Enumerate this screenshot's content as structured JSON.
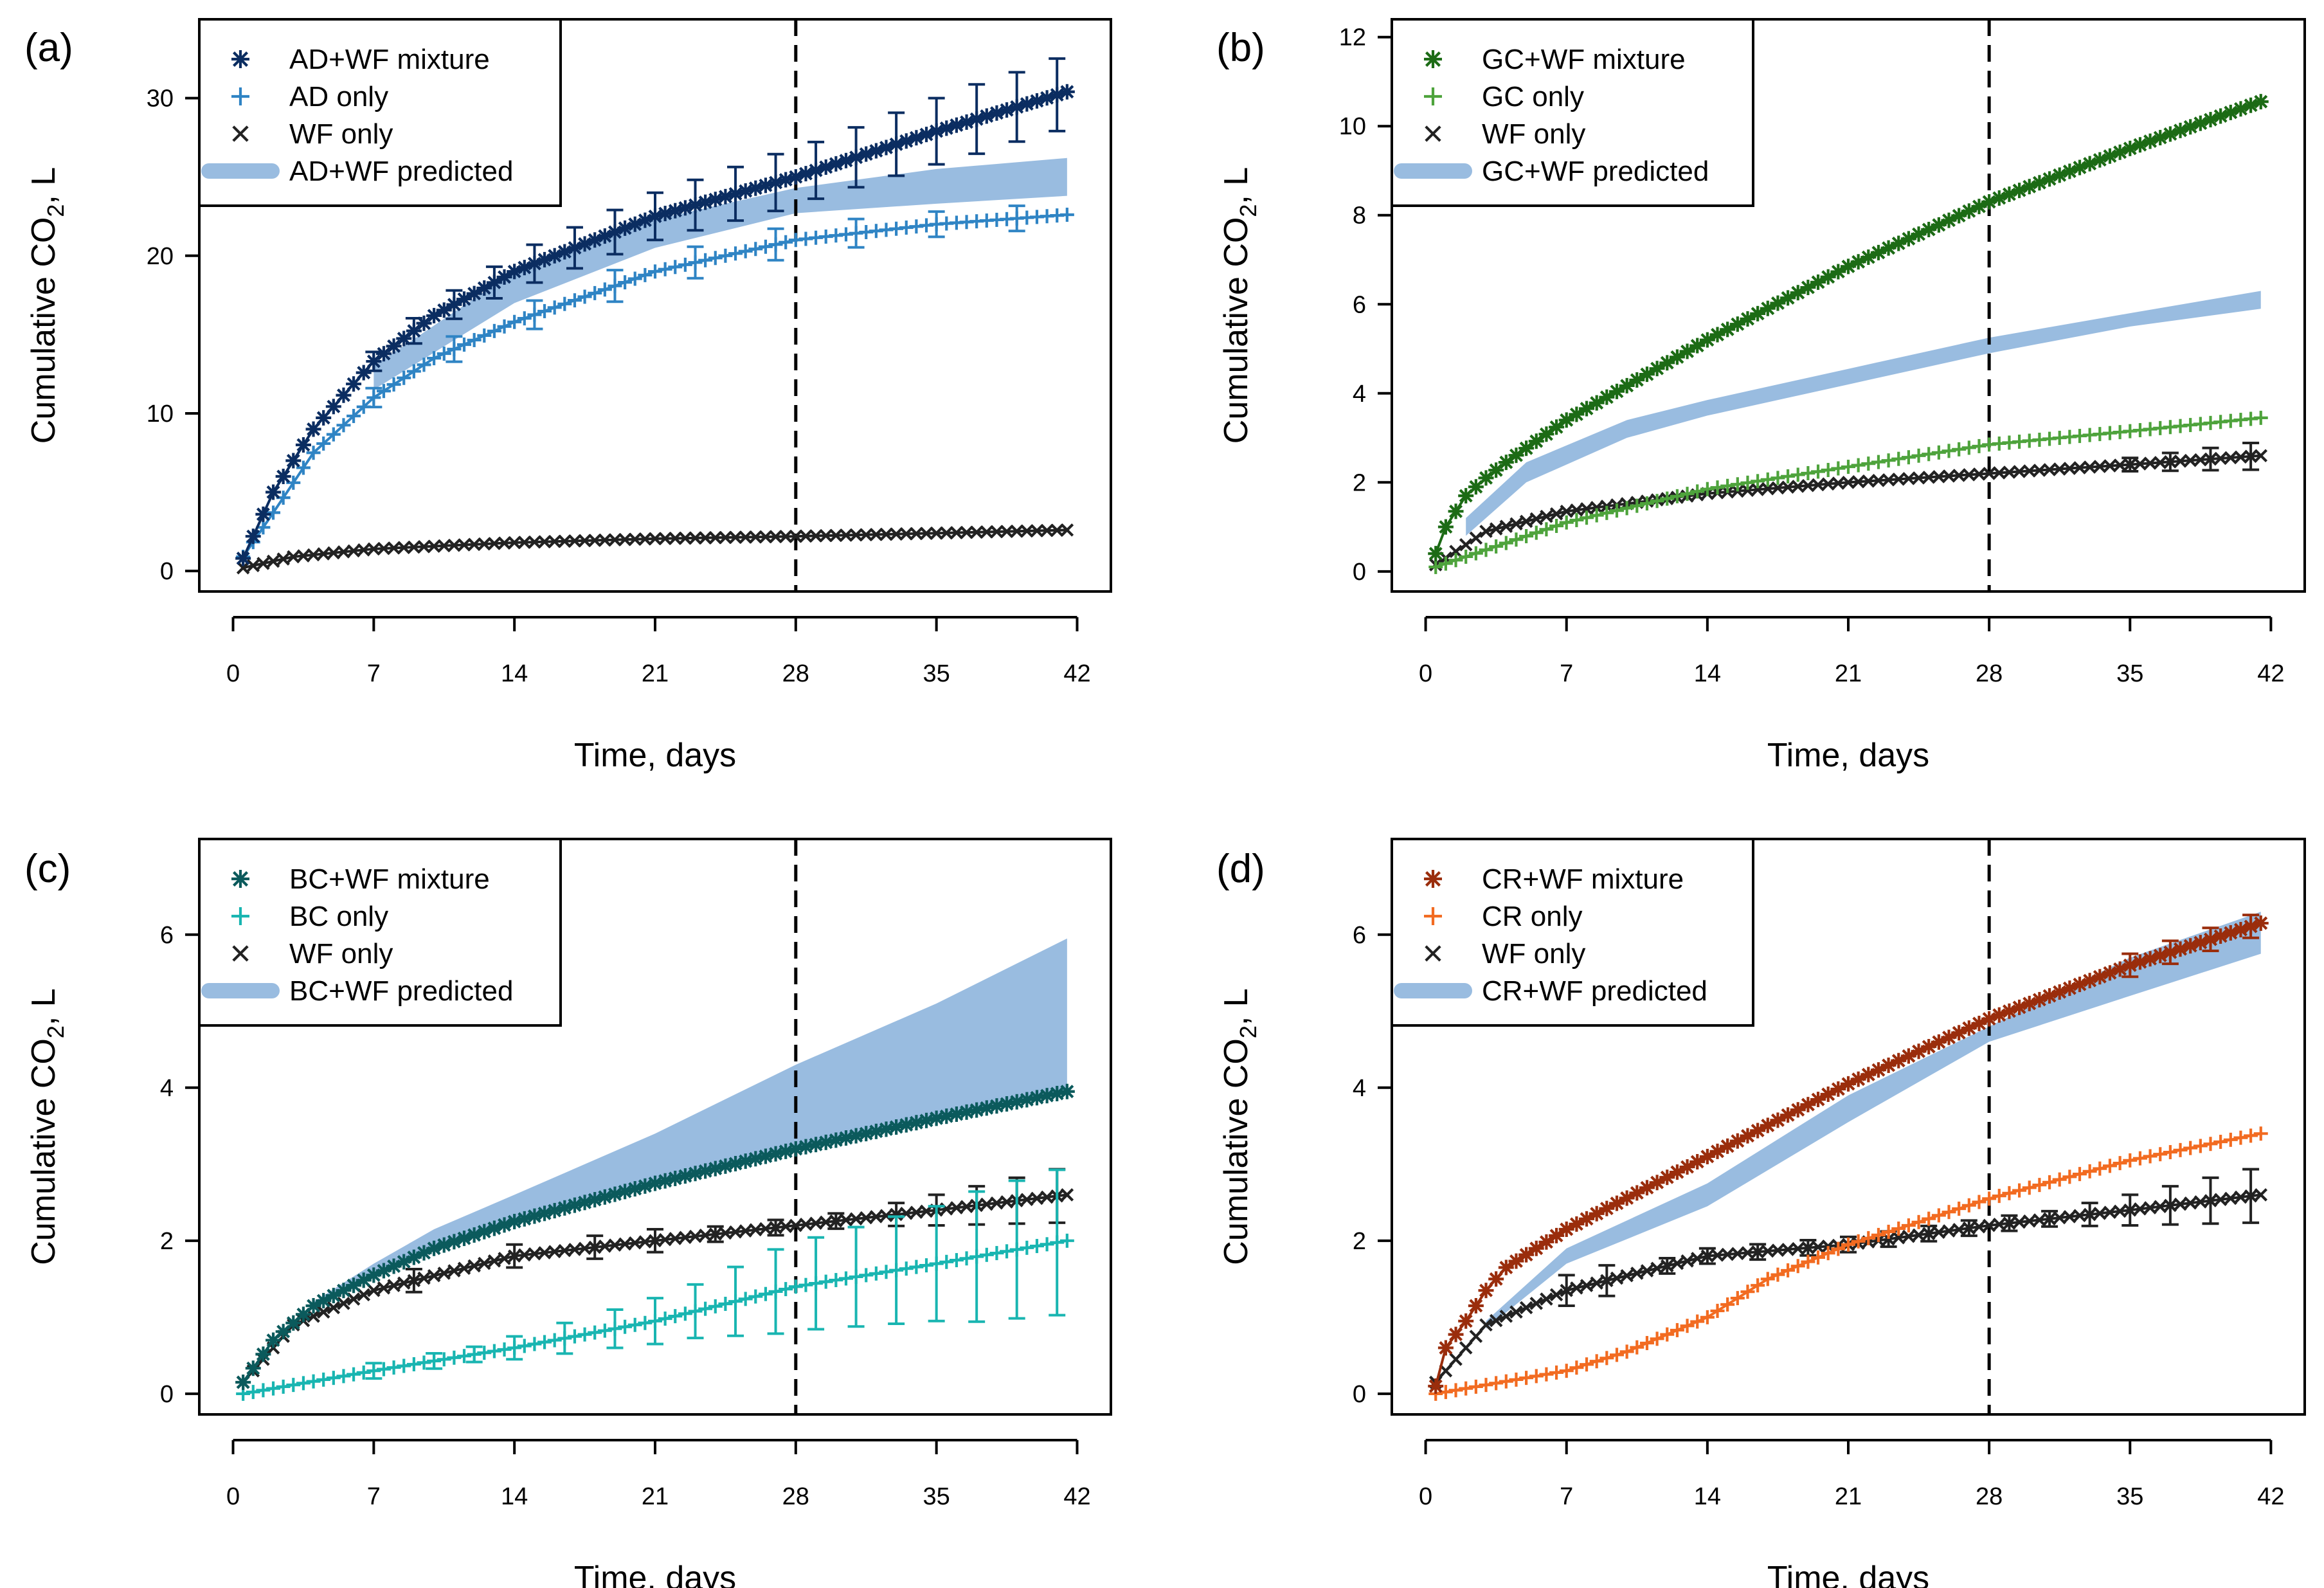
{
  "figure": {
    "shared": {
      "xlabel": "Time, days",
      "ylabel_prefix": "Cumulative CO",
      "ylabel_sub": "2",
      "ylabel_suffix": ", L",
      "x_ticks": [
        0,
        7,
        14,
        21,
        28,
        35,
        42
      ],
      "xlim": [
        -1.68,
        43.68
      ],
      "vline_x": 28
    }
  },
  "chart_data": [
    {
      "type": "line",
      "panel_label": "(a)",
      "ylim": [
        -1.3,
        35.0
      ],
      "y_ticks": [
        0,
        10,
        20,
        30
      ],
      "x_range": [
        0.5,
        41.5
      ],
      "colors": {
        "mix": "#0b2d61",
        "single": "#2f84c4",
        "wf": "#222222",
        "band": "#99bce0"
      },
      "legend": [
        "AD+WF mixture",
        "AD only",
        "WF only",
        "AD+WF predicted"
      ],
      "series": [
        {
          "name": "AD+WF mixture",
          "role": "mix",
          "marker": "asterisk",
          "x": [
            0.5,
            2,
            4,
            7,
            10,
            14,
            21,
            28,
            35,
            41.5
          ],
          "y": [
            0.8,
            5,
            9,
            13.3,
            16.2,
            19,
            22.5,
            25,
            27.9,
            30.4
          ],
          "errx": [
            7,
            9,
            11,
            13,
            15,
            17,
            19,
            21,
            23,
            25,
            27,
            29,
            31,
            33,
            35,
            37,
            39,
            41
          ],
          "erry": [
            0.6,
            0.8,
            0.9,
            1.0,
            1.2,
            1.3,
            1.4,
            1.5,
            1.6,
            1.7,
            1.8,
            1.8,
            1.9,
            2.0,
            2.1,
            2.2,
            2.2,
            2.3
          ]
        },
        {
          "name": "AD only",
          "role": "single",
          "marker": "plus",
          "x": [
            0.5,
            2,
            4,
            7,
            10,
            14,
            21,
            28,
            35,
            41.5
          ],
          "y": [
            0.9,
            3.7,
            7.5,
            11,
            13.5,
            15.8,
            19,
            21,
            22,
            22.6
          ],
          "errx": [
            7,
            11,
            15,
            19,
            23,
            27,
            31,
            35,
            39
          ],
          "erry": [
            0.6,
            0.8,
            0.9,
            1.0,
            1.0,
            1.0,
            0.9,
            0.8,
            0.8
          ]
        },
        {
          "name": "WF only",
          "role": "wf",
          "marker": "x",
          "x": [
            0.5,
            3,
            7,
            14,
            21,
            28,
            35,
            41.5
          ],
          "y": [
            0.2,
            0.9,
            1.4,
            1.8,
            2.05,
            2.2,
            2.4,
            2.6
          ],
          "errx": [],
          "erry": []
        }
      ],
      "band": {
        "name": "AD+WF predicted",
        "x": [
          7,
          14,
          21,
          28,
          35,
          41.5
        ],
        "lo": [
          11.5,
          17,
          20.5,
          22.7,
          23.3,
          23.8
        ],
        "hi": [
          13,
          19,
          22.3,
          24.3,
          25.5,
          26.2
        ]
      }
    },
    {
      "type": "line",
      "panel_label": "(b)",
      "ylim": [
        -0.45,
        12.4
      ],
      "y_ticks": [
        0,
        2,
        4,
        6,
        8,
        10,
        12
      ],
      "x_range": [
        0.5,
        41.5
      ],
      "colors": {
        "mix": "#1c6b15",
        "single": "#4ea33c",
        "wf": "#222222",
        "band": "#99bce0"
      },
      "legend": [
        "GC+WF mixture",
        "GC only",
        "WF only",
        "GC+WF predicted"
      ],
      "series": [
        {
          "name": "GC+WF mixture",
          "role": "mix",
          "marker": "asterisk",
          "x": [
            0.5,
            1,
            2,
            3,
            4,
            7,
            14,
            21,
            28,
            35,
            41.5
          ],
          "y": [
            0.4,
            1,
            1.7,
            2.1,
            2.45,
            3.4,
            5.2,
            6.85,
            8.3,
            9.5,
            10.55
          ],
          "errx": [],
          "erry": []
        },
        {
          "name": "GC only",
          "role": "single",
          "marker": "plus",
          "x": [
            0.5,
            7,
            14,
            21,
            28,
            35,
            41.5
          ],
          "y": [
            0.1,
            1.1,
            1.85,
            2.35,
            2.85,
            3.15,
            3.45
          ],
          "errx": [],
          "erry": []
        },
        {
          "name": "WF only",
          "role": "wf",
          "marker": "x",
          "x": [
            0.5,
            3,
            7,
            14,
            21,
            28,
            35,
            41.5
          ],
          "y": [
            0.15,
            0.9,
            1.35,
            1.75,
            2.0,
            2.2,
            2.4,
            2.6
          ],
          "errx": [
            35,
            37,
            39,
            41
          ],
          "erry": [
            0.15,
            0.2,
            0.25,
            0.3
          ]
        }
      ],
      "band": {
        "name": "GC+WF predicted",
        "x": [
          2,
          5,
          10,
          14,
          21,
          28,
          35,
          41.5
        ],
        "lo": [
          0.8,
          2.0,
          3.0,
          3.5,
          4.2,
          4.9,
          5.5,
          5.9
        ],
        "hi": [
          1.2,
          2.45,
          3.4,
          3.85,
          4.55,
          5.25,
          5.8,
          6.3
        ]
      }
    },
    {
      "type": "line",
      "panel_label": "(c)",
      "ylim": [
        -0.27,
        7.25
      ],
      "y_ticks": [
        0,
        2,
        4,
        6
      ],
      "x_range": [
        0.5,
        41.5
      ],
      "colors": {
        "mix": "#0b5a5c",
        "single": "#19b5b1",
        "wf": "#222222",
        "band": "#99bce0"
      },
      "legend": [
        "BC+WF mixture",
        "BC only",
        "WF only",
        "BC+WF predicted"
      ],
      "series": [
        {
          "name": "BC+WF mixture",
          "role": "mix",
          "marker": "asterisk",
          "x": [
            0.5,
            2,
            4,
            7,
            10,
            14,
            21,
            28,
            35,
            41.5
          ],
          "y": [
            0.15,
            0.7,
            1.15,
            1.55,
            1.9,
            2.25,
            2.75,
            3.2,
            3.6,
            3.95
          ],
          "errx": [],
          "erry": []
        },
        {
          "name": "BC only",
          "role": "single",
          "marker": "plus",
          "x": [
            0.5,
            7,
            14,
            21,
            28,
            35,
            41.5
          ],
          "y": [
            0.0,
            0.3,
            0.6,
            0.95,
            1.4,
            1.7,
            2.0
          ],
          "errx": [
            7,
            10,
            12,
            14,
            16.5,
            19,
            21,
            23,
            25,
            27,
            29,
            31,
            33,
            35,
            37,
            39,
            41
          ],
          "erry": [
            0.1,
            0.1,
            0.1,
            0.15,
            0.2,
            0.25,
            0.3,
            0.35,
            0.45,
            0.55,
            0.6,
            0.65,
            0.7,
            0.75,
            0.85,
            0.9,
            0.95
          ]
        },
        {
          "name": "WF only",
          "role": "wf",
          "marker": "x",
          "x": [
            0.5,
            3,
            7,
            14,
            21,
            28,
            35,
            41.5
          ],
          "y": [
            0.15,
            0.9,
            1.35,
            1.8,
            2.0,
            2.2,
            2.4,
            2.6
          ],
          "errx": [
            9,
            14,
            18,
            21,
            24,
            27,
            30,
            33,
            35,
            37,
            39,
            41
          ],
          "erry": [
            0.15,
            0.15,
            0.15,
            0.15,
            0.1,
            0.1,
            0.1,
            0.15,
            0.2,
            0.25,
            0.3,
            0.35
          ]
        }
      ],
      "band": {
        "name": "BC+WF predicted",
        "x": [
          4,
          7,
          10,
          14,
          21,
          28,
          35,
          41.5
        ],
        "lo": [
          1.15,
          1.55,
          1.9,
          2.25,
          2.75,
          3.2,
          3.6,
          3.95
        ],
        "hi": [
          1.2,
          1.7,
          2.15,
          2.6,
          3.4,
          4.3,
          5.1,
          5.95
        ]
      }
    },
    {
      "type": "line",
      "panel_label": "(d)",
      "ylim": [
        -0.27,
        7.25
      ],
      "y_ticks": [
        0,
        2,
        4,
        6
      ],
      "x_range": [
        0.5,
        41.5
      ],
      "colors": {
        "mix": "#9a2d0c",
        "single": "#f26b21",
        "wf": "#222222",
        "band": "#99bce0"
      },
      "legend": [
        "CR+WF mixture",
        "CR only",
        "WF only",
        "CR+WF predicted"
      ],
      "series": [
        {
          "name": "CR+WF mixture",
          "role": "mix",
          "marker": "asterisk",
          "x": [
            0.5,
            1,
            2,
            3,
            4,
            7,
            14,
            21,
            28,
            35,
            41.5
          ],
          "y": [
            0.1,
            0.6,
            0.95,
            1.35,
            1.65,
            2.15,
            3.1,
            4.05,
            4.9,
            5.6,
            6.15
          ],
          "errx": [
            35,
            37,
            39,
            41
          ],
          "erry": [
            0.15,
            0.15,
            0.15,
            0.15
          ]
        },
        {
          "name": "CR only",
          "role": "single",
          "marker": "plus",
          "x": [
            0.5,
            7,
            10,
            14,
            17,
            21,
            24,
            28,
            35,
            41.5
          ],
          "y": [
            0.0,
            0.3,
            0.55,
            1.0,
            1.5,
            1.95,
            2.2,
            2.55,
            3.05,
            3.4
          ],
          "errx": [],
          "erry": []
        },
        {
          "name": "WF only",
          "role": "wf",
          "marker": "x",
          "x": [
            0.5,
            3,
            7,
            14,
            21,
            28,
            35,
            41.5
          ],
          "y": [
            0.15,
            0.9,
            1.35,
            1.8,
            1.95,
            2.2,
            2.4,
            2.6
          ],
          "errx": [
            7,
            9,
            12,
            14,
            16.5,
            19,
            21,
            23,
            25,
            27,
            29,
            31,
            33,
            35,
            37,
            39,
            41
          ],
          "erry": [
            0.2,
            0.2,
            0.1,
            0.1,
            0.1,
            0.1,
            0.1,
            0.1,
            0.1,
            0.1,
            0.1,
            0.1,
            0.15,
            0.2,
            0.25,
            0.3,
            0.35
          ]
        }
      ],
      "band": {
        "name": "CR+WF predicted",
        "x": [
          3,
          7,
          14,
          21,
          28,
          35,
          41.5
        ],
        "lo": [
          0.85,
          1.7,
          2.45,
          3.55,
          4.6,
          5.2,
          5.75
        ],
        "hi": [
          0.95,
          1.9,
          2.75,
          3.9,
          4.8,
          5.7,
          6.3
        ]
      }
    }
  ]
}
